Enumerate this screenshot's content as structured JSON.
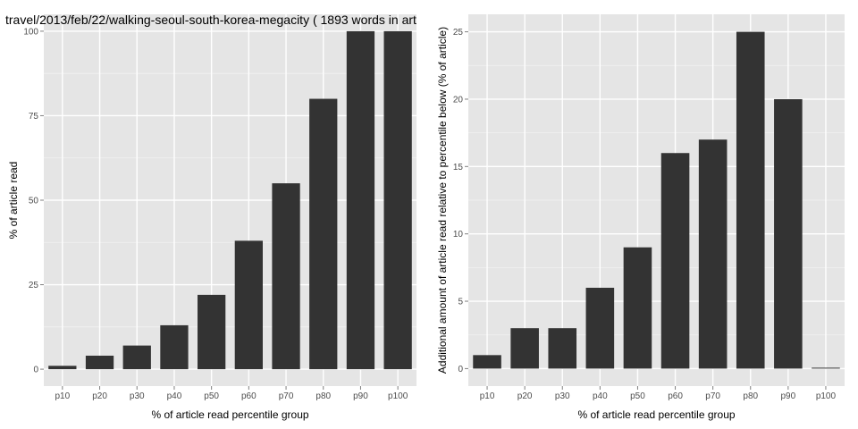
{
  "chart_data": [
    {
      "type": "bar",
      "title": "travel/2013/feb/22/walking-seoul-south-korea-megacity ( 1893 words in art",
      "xlabel": "% of article read percentile group",
      "ylabel": "% of article read",
      "categories": [
        "p10",
        "p20",
        "p30",
        "p40",
        "p50",
        "p60",
        "p70",
        "p80",
        "p90",
        "p100"
      ],
      "values": [
        1,
        4,
        7,
        13,
        22,
        38,
        55,
        80,
        100,
        100
      ],
      "ylim": [
        -5,
        105
      ],
      "yticks": [
        0,
        25,
        50,
        75,
        100
      ],
      "ytick_labels": [
        "0",
        "25",
        "50",
        "75",
        "100"
      ],
      "grid": true,
      "colors": {
        "panel": "#e5e5e5",
        "grid": "#ffffff",
        "bar": "#333333"
      }
    },
    {
      "type": "bar",
      "title": "",
      "xlabel": "% of article read percentile group",
      "ylabel": "Additional amount of article read relative to percentile below (% of article)",
      "categories": [
        "p10",
        "p20",
        "p30",
        "p40",
        "p50",
        "p60",
        "p70",
        "p80",
        "p90",
        "p100"
      ],
      "values": [
        1,
        3,
        3,
        6,
        9,
        16,
        17,
        25,
        20,
        0
      ],
      "ylim": [
        -1.3,
        26.3
      ],
      "yticks": [
        0,
        5,
        10,
        15,
        20,
        25
      ],
      "ytick_labels": [
        "0",
        "5",
        "10",
        "15",
        "20",
        "25"
      ],
      "grid": true,
      "colors": {
        "panel": "#e5e5e5",
        "grid": "#ffffff",
        "bar": "#333333"
      }
    }
  ]
}
